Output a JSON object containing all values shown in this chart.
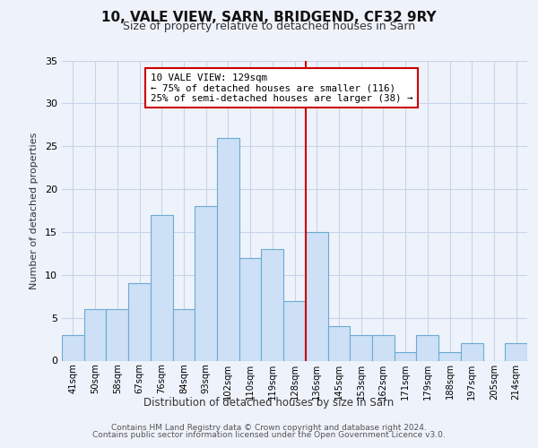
{
  "title": "10, VALE VIEW, SARN, BRIDGEND, CF32 9RY",
  "subtitle": "Size of property relative to detached houses in Sarn",
  "xlabel": "Distribution of detached houses by size in Sarn",
  "ylabel": "Number of detached properties",
  "bar_labels": [
    "41sqm",
    "50sqm",
    "58sqm",
    "67sqm",
    "76sqm",
    "84sqm",
    "93sqm",
    "102sqm",
    "110sqm",
    "119sqm",
    "128sqm",
    "136sqm",
    "145sqm",
    "153sqm",
    "162sqm",
    "171sqm",
    "179sqm",
    "188sqm",
    "197sqm",
    "205sqm",
    "214sqm"
  ],
  "bar_values": [
    3,
    6,
    6,
    9,
    17,
    6,
    18,
    26,
    12,
    13,
    7,
    15,
    4,
    3,
    3,
    1,
    3,
    1,
    2,
    0,
    2
  ],
  "bar_color": "#cde0f5",
  "bar_edge_color": "#6aaad4",
  "vline_x": 10.5,
  "vline_color": "#cc0000",
  "annotation_line1": "10 VALE VIEW: 129sqm",
  "annotation_line2": "← 75% of detached houses are smaller (116)",
  "annotation_line3": "25% of semi-detached houses are larger (38) →",
  "annotation_box_edgecolor": "#cc0000",
  "annotation_box_facecolor": "#ffffff",
  "ylim": [
    0,
    35
  ],
  "yticks": [
    0,
    5,
    10,
    15,
    20,
    25,
    30,
    35
  ],
  "grid_color": "#c8d4e8",
  "background_color": "#eef2fa",
  "footer_line1": "Contains HM Land Registry data © Crown copyright and database right 2024.",
  "footer_line2": "Contains public sector information licensed under the Open Government Licence v3.0."
}
